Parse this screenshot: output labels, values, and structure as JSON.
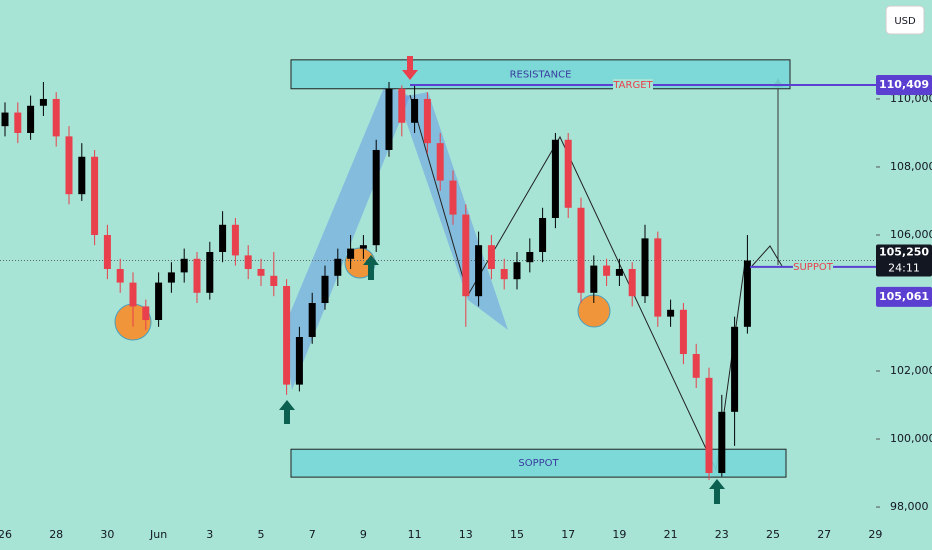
{
  "chart_data": {
    "type": "candlestick",
    "currency": "USD",
    "categories": [
      "26",
      null,
      null,
      null,
      "28",
      null,
      null,
      null,
      "30",
      null,
      null,
      null,
      "Jun",
      null,
      null,
      null,
      "3",
      null,
      null,
      null,
      "5",
      null,
      null,
      null,
      "7",
      null,
      null,
      null,
      "9",
      null,
      null,
      null,
      "11",
      null,
      null,
      null,
      "13",
      null,
      null,
      null,
      "15",
      null,
      null,
      null,
      "17",
      null,
      null,
      null,
      "19",
      null,
      null,
      null,
      "21",
      null,
      null,
      null,
      "23",
      null,
      null,
      null,
      "25",
      null,
      null,
      null,
      "27",
      null,
      null,
      null,
      "29",
      null
    ],
    "open": [
      109200,
      109600,
      109000,
      109800,
      110000,
      108900,
      107200,
      108300,
      106000,
      105000,
      104600,
      103900,
      103500,
      104600,
      104900,
      105300,
      104300,
      105500,
      106300,
      105400,
      105000,
      104800,
      104500,
      101600,
      103000,
      104000,
      104800,
      105300,
      105600,
      105700,
      108500,
      110300,
      109300,
      110000,
      108700,
      107600,
      106600,
      104200,
      105700,
      105000,
      104700,
      105200,
      105500,
      106500,
      108800,
      106800,
      104300,
      105100,
      104800,
      105000,
      104200,
      105900,
      103600,
      103800,
      102500,
      101800,
      99000,
      100800,
      103300,
      null,
      null,
      null,
      null,
      null,
      null,
      null,
      null,
      null,
      null,
      null
    ],
    "high": [
      109900,
      109900,
      110100,
      110500,
      110200,
      109200,
      108700,
      108500,
      106300,
      105300,
      104900,
      104100,
      104900,
      105200,
      105600,
      105500,
      105800,
      106700,
      106500,
      105700,
      105300,
      105500,
      104700,
      103300,
      104300,
      105100,
      105600,
      106000,
      106000,
      108800,
      110500,
      110400,
      110400,
      110200,
      109000,
      107900,
      106900,
      106100,
      106000,
      105300,
      105500,
      105900,
      106800,
      109000,
      109000,
      107100,
      105400,
      105300,
      105300,
      105200,
      106300,
      106100,
      104100,
      104000,
      102800,
      102100,
      101300,
      103600,
      106000,
      null,
      null,
      null,
      null,
      null,
      null,
      null,
      null,
      null,
      null,
      null
    ],
    "low": [
      108900,
      108700,
      108800,
      109500,
      108600,
      106900,
      107000,
      105700,
      104700,
      104300,
      103300,
      103200,
      103300,
      104300,
      104600,
      104000,
      104100,
      105200,
      105100,
      104700,
      104500,
      104200,
      101300,
      101400,
      102800,
      103800,
      104500,
      105000,
      105300,
      105500,
      108300,
      108900,
      109000,
      108400,
      107300,
      106300,
      103300,
      103900,
      104700,
      104400,
      104400,
      104900,
      105200,
      106200,
      106500,
      104000,
      104000,
      104500,
      104500,
      103900,
      104000,
      103300,
      103300,
      102200,
      101500,
      98800,
      98900,
      99800,
      103100,
      null,
      null,
      null,
      null,
      null,
      null,
      null,
      null,
      null,
      null,
      null
    ],
    "close": [
      109600,
      109000,
      109800,
      110000,
      108900,
      107200,
      108300,
      106000,
      105000,
      104600,
      103900,
      103500,
      104600,
      104900,
      105300,
      104300,
      105500,
      106300,
      105400,
      105000,
      104800,
      104500,
      101600,
      103000,
      104000,
      104800,
      105300,
      105600,
      105700,
      108500,
      110300,
      109300,
      110000,
      108700,
      107600,
      106600,
      104200,
      105700,
      105000,
      104700,
      105200,
      105500,
      106500,
      108800,
      106800,
      104300,
      105100,
      104800,
      105000,
      104200,
      105900,
      103600,
      103800,
      102500,
      101800,
      99000,
      100800,
      103300,
      105250,
      null,
      null,
      null,
      null,
      null,
      null,
      null,
      null,
      null,
      null,
      null
    ],
    "up_color": "#000000",
    "down_color": "#e8404c",
    "ylim": [
      97560,
      112910
    ],
    "yticks": [
      {
        "value": 98000,
        "label": "98,000"
      },
      {
        "value": 100000,
        "label": "100,000"
      },
      {
        "value": 102000,
        "label": "102,000"
      },
      {
        "value": 106000,
        "label": "106,000"
      },
      {
        "value": 108000,
        "label": "108,000"
      },
      {
        "value": 110000,
        "label": "110,000"
      }
    ],
    "zones": [
      {
        "text": "RESISTANCE",
        "range": [
          111150,
          110300
        ]
      },
      {
        "text": "SOPPOT",
        "range": [
          99700,
          98880
        ]
      }
    ],
    "levels": [
      {
        "text": "TARGET",
        "value": 110409,
        "label": "110,409"
      },
      {
        "text": "SUPPOT",
        "value": 105061,
        "label": "105,061"
      }
    ],
    "last_price": {
      "value": 105250,
      "label": "105,250",
      "countdown": "24:11"
    }
  }
}
